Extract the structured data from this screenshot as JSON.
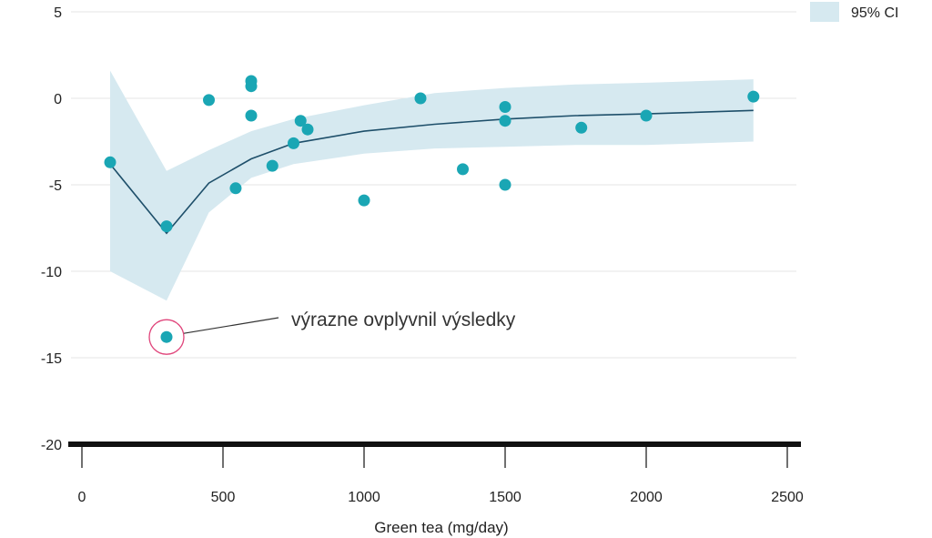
{
  "chart_data": {
    "type": "scatter",
    "xlabel": "Green tea (mg/day)",
    "ylabel": "",
    "xlim": [
      0,
      2500
    ],
    "ylim": [
      -20,
      5
    ],
    "x_ticks": [
      0,
      500,
      1000,
      1500,
      2000,
      2500
    ],
    "y_ticks": [
      5,
      0,
      -5,
      -10,
      -15,
      -20
    ],
    "grid": true,
    "legend": {
      "placement": "top-right",
      "entries": [
        {
          "label": "95% CI"
        }
      ]
    },
    "points": [
      {
        "x": 100,
        "y": -3.7
      },
      {
        "x": 300,
        "y": -7.4
      },
      {
        "x": 450,
        "y": -0.1
      },
      {
        "x": 545,
        "y": -5.2
      },
      {
        "x": 600,
        "y": 1.0
      },
      {
        "x": 600,
        "y": 0.7
      },
      {
        "x": 600,
        "y": -1.0
      },
      {
        "x": 675,
        "y": -3.9
      },
      {
        "x": 750,
        "y": -2.6
      },
      {
        "x": 775,
        "y": -1.3
      },
      {
        "x": 800,
        "y": -1.8
      },
      {
        "x": 1000,
        "y": -5.9
      },
      {
        "x": 1200,
        "y": 0.0
      },
      {
        "x": 1350,
        "y": -4.1
      },
      {
        "x": 1500,
        "y": -0.5
      },
      {
        "x": 1500,
        "y": -1.3
      },
      {
        "x": 1500,
        "y": -5.0
      },
      {
        "x": 1770,
        "y": -1.7
      },
      {
        "x": 2000,
        "y": -1.0
      },
      {
        "x": 2380,
        "y": 0.1
      }
    ],
    "highlighted_point": {
      "x": 300,
      "y": -13.8
    },
    "fit_line": {
      "x": [
        100,
        300,
        450,
        600,
        750,
        1000,
        1250,
        1500,
        1750,
        2000,
        2380
      ],
      "y": [
        -3.8,
        -7.8,
        -4.9,
        -3.5,
        -2.6,
        -1.9,
        -1.5,
        -1.2,
        -1.0,
        -0.9,
        -0.7
      ]
    },
    "ci_band": {
      "x": [
        100,
        300,
        450,
        600,
        750,
        1000,
        1250,
        1500,
        1750,
        2000,
        2380
      ],
      "upper": [
        1.6,
        -4.2,
        -3.0,
        -1.9,
        -1.2,
        -0.4,
        0.3,
        0.6,
        0.8,
        0.9,
        1.1
      ],
      "lower": [
        -10.0,
        -11.7,
        -6.6,
        -4.6,
        -3.8,
        -3.2,
        -2.9,
        -2.8,
        -2.7,
        -2.7,
        -2.5
      ]
    },
    "annotation": {
      "text": "výrazne ovplyvnil výsledky"
    },
    "colors": {
      "points": "#1aa6b4",
      "line": "#1e4f6a",
      "band": "#d6e9f0",
      "highlight_ring": "#e0457b",
      "axis": "#111111",
      "grid": "#e6e6e6",
      "text": "#222222"
    }
  }
}
